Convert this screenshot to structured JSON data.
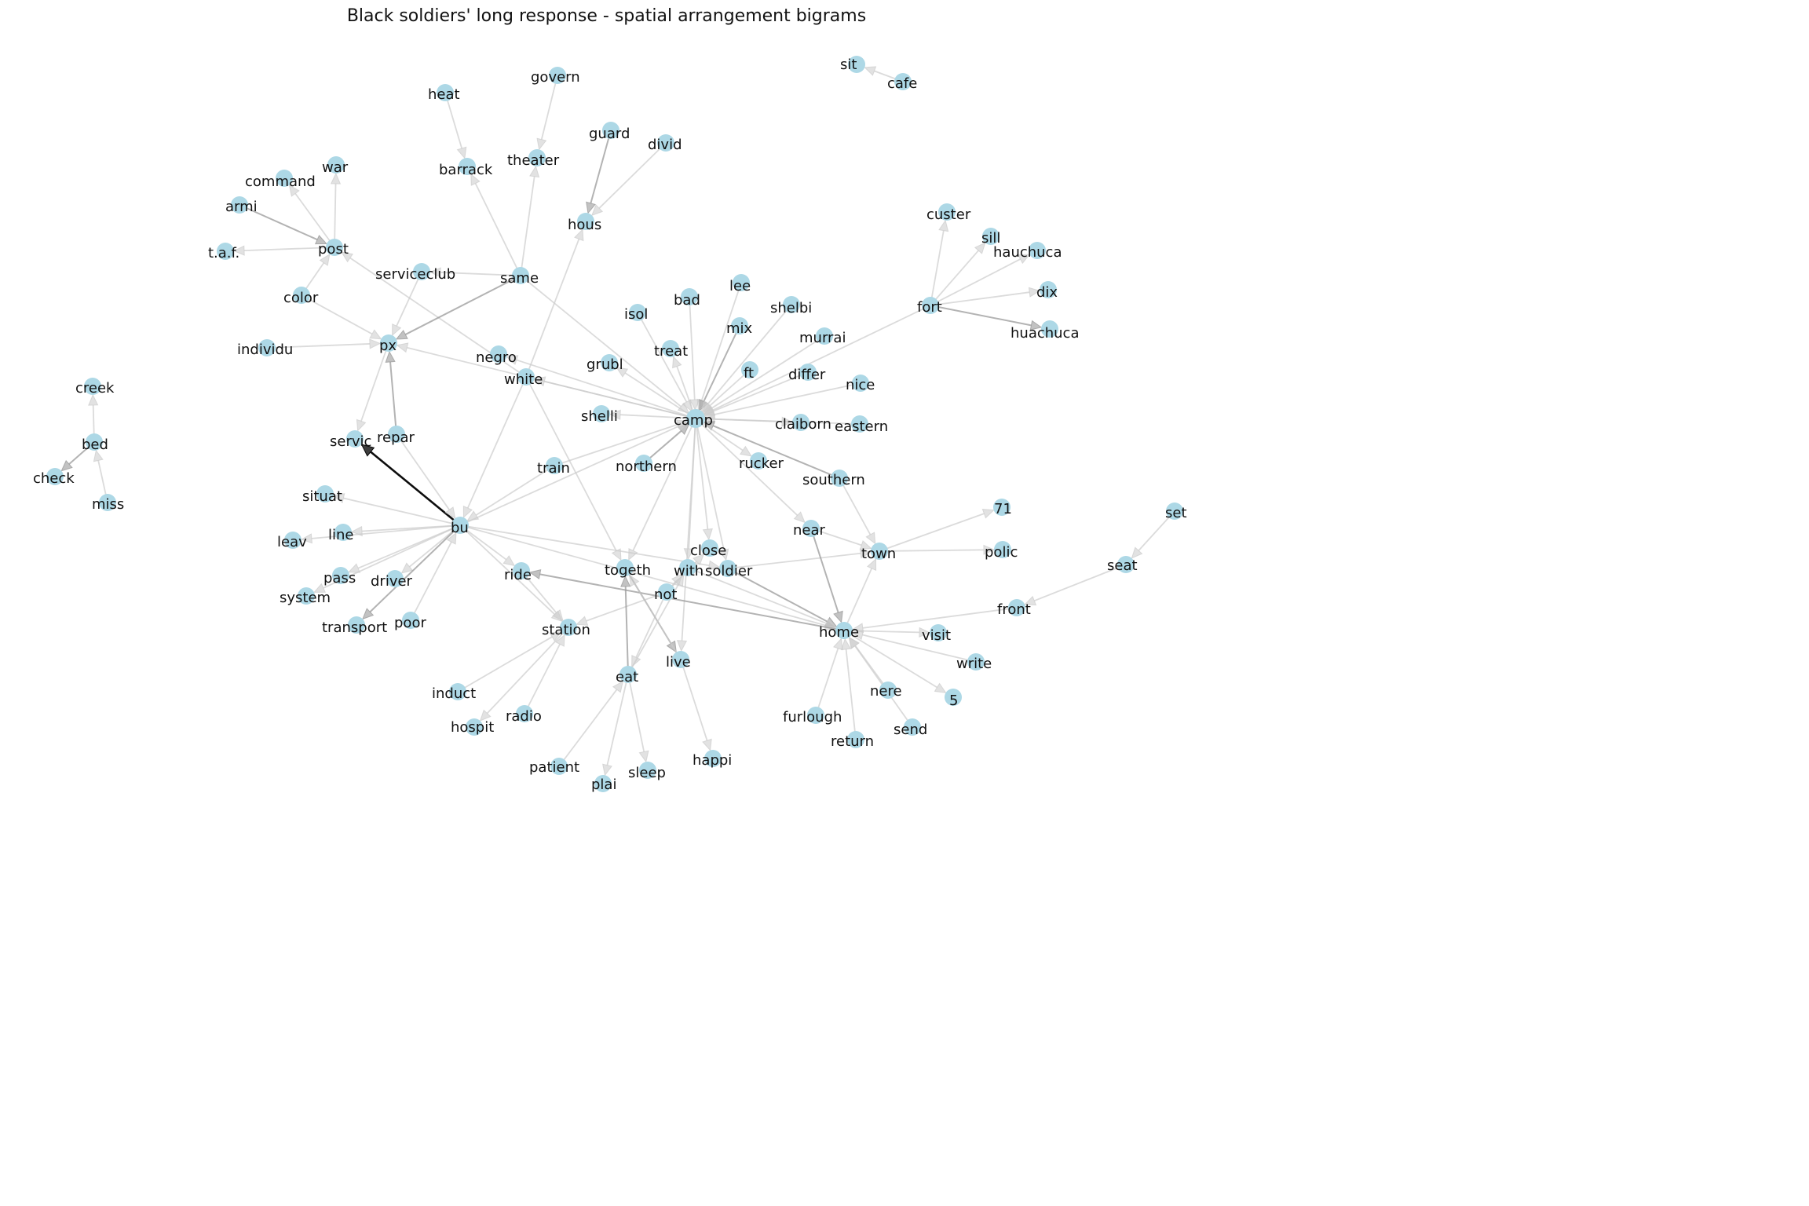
{
  "title": "Black soldiers' long response - spatial arrangement bigrams",
  "colors": {
    "node": "#add8e6",
    "edge_light": "#cccccc",
    "edge_mid": "#999999",
    "edge_dark": "#000000",
    "label": "#111111"
  },
  "nodes": [
    {
      "id": "sit",
      "label": "sit"
    },
    {
      "id": "cafe",
      "label": "cafe"
    },
    {
      "id": "govern",
      "label": "govern"
    },
    {
      "id": "heat",
      "label": "heat"
    },
    {
      "id": "guard",
      "label": "guard"
    },
    {
      "id": "divid",
      "label": "divid"
    },
    {
      "id": "theater",
      "label": "theater"
    },
    {
      "id": "barrack",
      "label": "barrack"
    },
    {
      "id": "command",
      "label": "command"
    },
    {
      "id": "war",
      "label": "war"
    },
    {
      "id": "armi",
      "label": "armi"
    },
    {
      "id": "hous",
      "label": "hous"
    },
    {
      "id": "custer",
      "label": "custer"
    },
    {
      "id": "sill",
      "label": "sill"
    },
    {
      "id": "hauchuca",
      "label": "hauchuca"
    },
    {
      "id": "taf",
      "label": "t.a.f."
    },
    {
      "id": "post",
      "label": "post"
    },
    {
      "id": "serviceclub",
      "label": "serviceclub"
    },
    {
      "id": "same",
      "label": "same"
    },
    {
      "id": "lee",
      "label": "lee"
    },
    {
      "id": "bad",
      "label": "bad"
    },
    {
      "id": "shelbi",
      "label": "shelbi"
    },
    {
      "id": "dix",
      "label": "dix"
    },
    {
      "id": "color",
      "label": "color"
    },
    {
      "id": "isol",
      "label": "isol"
    },
    {
      "id": "fort",
      "label": "fort"
    },
    {
      "id": "mix",
      "label": "mix"
    },
    {
      "id": "huachuca",
      "label": "huachuca"
    },
    {
      "id": "murrai",
      "label": "murrai"
    },
    {
      "id": "individu",
      "label": "individu"
    },
    {
      "id": "px",
      "label": "px"
    },
    {
      "id": "treat",
      "label": "treat"
    },
    {
      "id": "negro",
      "label": "negro"
    },
    {
      "id": "grubl",
      "label": "grubl"
    },
    {
      "id": "ft",
      "label": "ft"
    },
    {
      "id": "differ",
      "label": "differ"
    },
    {
      "id": "white",
      "label": "white"
    },
    {
      "id": "nice",
      "label": "nice"
    },
    {
      "id": "creek",
      "label": "creek"
    },
    {
      "id": "shelli",
      "label": "shelli"
    },
    {
      "id": "camp",
      "label": "camp"
    },
    {
      "id": "claiborn",
      "label": "claiborn"
    },
    {
      "id": "eastern",
      "label": "eastern"
    },
    {
      "id": "servic",
      "label": "servic"
    },
    {
      "id": "repar",
      "label": "repar"
    },
    {
      "id": "bed",
      "label": "bed"
    },
    {
      "id": "train",
      "label": "train"
    },
    {
      "id": "northern",
      "label": "northern"
    },
    {
      "id": "rucker",
      "label": "rucker"
    },
    {
      "id": "check",
      "label": "check"
    },
    {
      "id": "southern",
      "label": "southern"
    },
    {
      "id": "situat",
      "label": "situat"
    },
    {
      "id": "miss",
      "label": "miss"
    },
    {
      "id": "n71",
      "label": "71"
    },
    {
      "id": "set",
      "label": "set"
    },
    {
      "id": "bu",
      "label": "bu"
    },
    {
      "id": "near",
      "label": "near"
    },
    {
      "id": "line",
      "label": "line"
    },
    {
      "id": "leav",
      "label": "leav"
    },
    {
      "id": "town",
      "label": "town"
    },
    {
      "id": "polic",
      "label": "polic"
    },
    {
      "id": "close",
      "label": "close"
    },
    {
      "id": "ride",
      "label": "ride"
    },
    {
      "id": "togeth",
      "label": "togeth"
    },
    {
      "id": "with",
      "label": "with"
    },
    {
      "id": "soldier",
      "label": "soldier"
    },
    {
      "id": "seat",
      "label": "seat"
    },
    {
      "id": "pass",
      "label": "pass"
    },
    {
      "id": "driver",
      "label": "driver"
    },
    {
      "id": "not",
      "label": "not"
    },
    {
      "id": "system",
      "label": "system"
    },
    {
      "id": "front",
      "label": "front"
    },
    {
      "id": "transport",
      "label": "transport"
    },
    {
      "id": "poor",
      "label": "poor"
    },
    {
      "id": "station",
      "label": "station"
    },
    {
      "id": "home",
      "label": "home"
    },
    {
      "id": "visit",
      "label": "visit"
    },
    {
      "id": "live",
      "label": "live"
    },
    {
      "id": "eat",
      "label": "eat"
    },
    {
      "id": "write",
      "label": "write"
    },
    {
      "id": "induct",
      "label": "induct"
    },
    {
      "id": "nere",
      "label": "nere"
    },
    {
      "id": "n5",
      "label": "5"
    },
    {
      "id": "radio",
      "label": "radio"
    },
    {
      "id": "hospit",
      "label": "hospit"
    },
    {
      "id": "furlough",
      "label": "furlough"
    },
    {
      "id": "send",
      "label": "send"
    },
    {
      "id": "return",
      "label": "return"
    },
    {
      "id": "happi",
      "label": "happi"
    },
    {
      "id": "patient",
      "label": "patient"
    },
    {
      "id": "sleep",
      "label": "sleep"
    },
    {
      "id": "plai",
      "label": "plai"
    }
  ],
  "edges": [
    {
      "source": "cafe",
      "target": "sit",
      "weight": 1
    },
    {
      "source": "govern",
      "target": "theater",
      "weight": 1
    },
    {
      "source": "heat",
      "target": "barrack",
      "weight": 1
    },
    {
      "source": "same",
      "target": "barrack",
      "weight": 1
    },
    {
      "source": "same",
      "target": "theater",
      "weight": 1
    },
    {
      "source": "guard",
      "target": "hous",
      "weight": 2
    },
    {
      "source": "divid",
      "target": "hous",
      "weight": 1
    },
    {
      "source": "white",
      "target": "hous",
      "weight": 1
    },
    {
      "source": "armi",
      "target": "post",
      "weight": 2
    },
    {
      "source": "post",
      "target": "command",
      "weight": 1
    },
    {
      "source": "post",
      "target": "war",
      "weight": 1
    },
    {
      "source": "post",
      "target": "taf",
      "weight": 1
    },
    {
      "source": "color",
      "target": "post",
      "weight": 1
    },
    {
      "source": "color",
      "target": "px",
      "weight": 1
    },
    {
      "source": "white",
      "target": "post",
      "weight": 1
    },
    {
      "source": "same",
      "target": "serviceclub",
      "weight": 1
    },
    {
      "source": "same",
      "target": "px",
      "weight": 2
    },
    {
      "source": "individu",
      "target": "px",
      "weight": 1
    },
    {
      "source": "serviceclub",
      "target": "px",
      "weight": 1
    },
    {
      "source": "px",
      "target": "servic",
      "weight": 1
    },
    {
      "source": "repar",
      "target": "px",
      "weight": 2
    },
    {
      "source": "bu",
      "target": "servic",
      "weight": 5
    },
    {
      "source": "camp",
      "target": "px",
      "weight": 1
    },
    {
      "source": "camp",
      "target": "negro",
      "weight": 1
    },
    {
      "source": "camp",
      "target": "white",
      "weight": 1
    },
    {
      "source": "camp",
      "target": "grubl",
      "weight": 1
    },
    {
      "source": "camp",
      "target": "shelli",
      "weight": 1
    },
    {
      "source": "camp",
      "target": "treat",
      "weight": 1
    },
    {
      "source": "isol",
      "target": "camp",
      "weight": 1
    },
    {
      "source": "bad",
      "target": "camp",
      "weight": 1
    },
    {
      "source": "lee",
      "target": "camp",
      "weight": 1
    },
    {
      "source": "mix",
      "target": "camp",
      "weight": 2
    },
    {
      "source": "shelbi",
      "target": "camp",
      "weight": 1
    },
    {
      "source": "murrai",
      "target": "camp",
      "weight": 1
    },
    {
      "source": "ft",
      "target": "camp",
      "weight": 1
    },
    {
      "source": "differ",
      "target": "camp",
      "weight": 1
    },
    {
      "source": "nice",
      "target": "camp",
      "weight": 1
    },
    {
      "source": "fort",
      "target": "camp",
      "weight": 1
    },
    {
      "source": "same",
      "target": "camp",
      "weight": 1
    },
    {
      "source": "camp",
      "target": "claiborn",
      "weight": 1
    },
    {
      "source": "eastern",
      "target": "camp",
      "weight": 1
    },
    {
      "source": "southern",
      "target": "camp",
      "weight": 2
    },
    {
      "source": "northern",
      "target": "camp",
      "weight": 2
    },
    {
      "source": "camp",
      "target": "rucker",
      "weight": 1
    },
    {
      "source": "train",
      "target": "camp",
      "weight": 1
    },
    {
      "source": "bu",
      "target": "camp",
      "weight": 1
    },
    {
      "source": "camp",
      "target": "togeth",
      "weight": 1
    },
    {
      "source": "camp",
      "target": "close",
      "weight": 1
    },
    {
      "source": "camp",
      "target": "with",
      "weight": 1
    },
    {
      "source": "camp",
      "target": "soldier",
      "weight": 1
    },
    {
      "source": "camp",
      "target": "live",
      "weight": 1
    },
    {
      "source": "camp",
      "target": "near",
      "weight": 1
    },
    {
      "source": "fort",
      "target": "custer",
      "weight": 1
    },
    {
      "source": "fort",
      "target": "sill",
      "weight": 1
    },
    {
      "source": "fort",
      "target": "hauchuca",
      "weight": 1
    },
    {
      "source": "fort",
      "target": "dix",
      "weight": 1
    },
    {
      "source": "fort",
      "target": "huachuca",
      "weight": 2
    },
    {
      "source": "bed",
      "target": "creek",
      "weight": 1
    },
    {
      "source": "bed",
      "target": "check",
      "weight": 2
    },
    {
      "source": "miss",
      "target": "bed",
      "weight": 1
    },
    {
      "source": "bu",
      "target": "situat",
      "weight": 1
    },
    {
      "source": "bu",
      "target": "line",
      "weight": 1
    },
    {
      "source": "bu",
      "target": "leav",
      "weight": 1
    },
    {
      "source": "bu",
      "target": "pass",
      "weight": 1
    },
    {
      "source": "bu",
      "target": "driver",
      "weight": 1
    },
    {
      "source": "bu",
      "target": "system",
      "weight": 1
    },
    {
      "source": "bu",
      "target": "transport",
      "weight": 2
    },
    {
      "source": "poor",
      "target": "bu",
      "weight": 1
    },
    {
      "source": "bu",
      "target": "ride",
      "weight": 1
    },
    {
      "source": "bu",
      "target": "station",
      "weight": 1
    },
    {
      "source": "bu",
      "target": "soldier",
      "weight": 1
    },
    {
      "source": "white",
      "target": "bu",
      "weight": 1
    },
    {
      "source": "white",
      "target": "togeth",
      "weight": 1
    },
    {
      "source": "train",
      "target": "bu",
      "weight": 1
    },
    {
      "source": "repar",
      "target": "bu",
      "weight": 1
    },
    {
      "source": "set",
      "target": "seat",
      "weight": 1
    },
    {
      "source": "seat",
      "target": "front",
      "weight": 1
    },
    {
      "source": "front",
      "target": "home",
      "weight": 1
    },
    {
      "source": "southern",
      "target": "town",
      "weight": 1
    },
    {
      "source": "town",
      "target": "n71",
      "weight": 1
    },
    {
      "source": "town",
      "target": "polic",
      "weight": 1
    },
    {
      "source": "soldier",
      "target": "town",
      "weight": 1
    },
    {
      "source": "home",
      "target": "town",
      "weight": 1
    },
    {
      "source": "near",
      "target": "town",
      "weight": 1
    },
    {
      "source": "near",
      "target": "home",
      "weight": 2
    },
    {
      "source": "home",
      "target": "visit",
      "weight": 1
    },
    {
      "source": "write",
      "target": "home",
      "weight": 1
    },
    {
      "source": "home",
      "target": "n5",
      "weight": 1
    },
    {
      "source": "nere",
      "target": "home",
      "weight": 1
    },
    {
      "source": "send",
      "target": "home",
      "weight": 1
    },
    {
      "source": "return",
      "target": "home",
      "weight": 1
    },
    {
      "source": "furlough",
      "target": "home",
      "weight": 1
    },
    {
      "source": "bu",
      "target": "home",
      "weight": 1
    },
    {
      "source": "soldier",
      "target": "home",
      "weight": 2
    },
    {
      "source": "with",
      "target": "home",
      "weight": 1
    },
    {
      "source": "home",
      "target": "ride",
      "weight": 2
    },
    {
      "source": "not",
      "target": "close",
      "weight": 1
    },
    {
      "source": "not",
      "target": "with",
      "weight": 1
    },
    {
      "source": "not",
      "target": "station",
      "weight": 1
    },
    {
      "source": "not",
      "target": "eat",
      "weight": 1
    },
    {
      "source": "togeth",
      "target": "live",
      "weight": 2
    },
    {
      "source": "eat",
      "target": "togeth",
      "weight": 2
    },
    {
      "source": "live",
      "target": "togeth",
      "weight": 1
    },
    {
      "source": "live",
      "target": "happi",
      "weight": 1
    },
    {
      "source": "eat",
      "target": "with",
      "weight": 1
    },
    {
      "source": "eat",
      "target": "sleep",
      "weight": 1
    },
    {
      "source": "eat",
      "target": "plai",
      "weight": 1
    },
    {
      "source": "patient",
      "target": "eat",
      "weight": 1
    },
    {
      "source": "ride",
      "target": "station",
      "weight": 1
    },
    {
      "source": "induct",
      "target": "station",
      "weight": 1
    },
    {
      "source": "radio",
      "target": "station",
      "weight": 1
    },
    {
      "source": "station",
      "target": "hospit",
      "weight": 1
    }
  ]
}
